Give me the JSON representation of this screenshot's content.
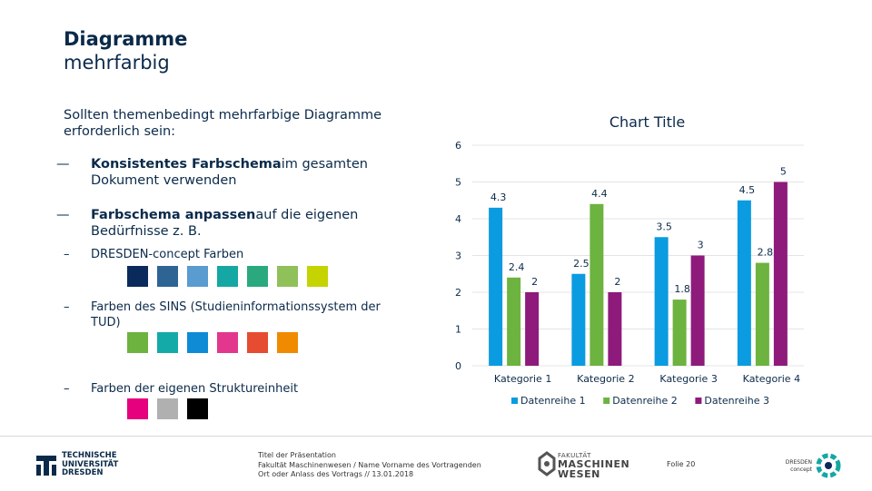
{
  "slide": {
    "title_bold": "Diagramme",
    "title_normal": "mehrfarbig",
    "intro": "Sollten themenbedingt mehrfarbige Diagramme erforderlich sein:",
    "bullets": [
      {
        "dash": "—",
        "bold": "Konsistentes Farbschema",
        "rest": "im gesamten Dokument verwenden"
      },
      {
        "dash": "—",
        "bold": "Farbschema anpassen",
        "rest": "auf die eigenen Bedürfnisse z. B."
      }
    ],
    "subs": [
      {
        "dash": "–",
        "text": "DRESDEN-concept Farben"
      },
      {
        "dash": "–",
        "text": "Farben des SINS (Studieninformationssystem der TUD)"
      },
      {
        "dash": "–",
        "text": "Farben der eigenen Struktureinheit"
      }
    ],
    "swatch_rows": [
      [
        "#0b2a5c",
        "#2e6494",
        "#5a9bd0",
        "#14a7a3",
        "#2aa97e",
        "#8fc05a",
        "#c5d300"
      ],
      [
        "#6db33f",
        "#14aaa8",
        "#0f8bd6",
        "#e2378d",
        "#e64c31",
        "#f08a00"
      ],
      [
        "#e6007e",
        "#b0b0b0",
        "#000000"
      ]
    ]
  },
  "chart_data": {
    "type": "bar",
    "title": "Chart Title",
    "categories": [
      "Kategorie 1",
      "Kategorie 2",
      "Kategorie 3",
      "Kategorie 4"
    ],
    "series": [
      {
        "name": "Datenreihe 1",
        "values": [
          4.3,
          2.5,
          3.5,
          4.5
        ],
        "color": "#0b9be0"
      },
      {
        "name": "Datenreihe 2",
        "values": [
          2.4,
          4.4,
          1.8,
          2.8
        ],
        "color": "#6db33f"
      },
      {
        "name": "Datenreihe 3",
        "values": [
          2,
          2,
          3,
          5
        ],
        "color": "#8e1a7c"
      }
    ],
    "ylim": [
      0,
      6
    ],
    "yticks": [
      0,
      1,
      2,
      3,
      4,
      5,
      6
    ],
    "legend_position": "bottom"
  },
  "footer": {
    "tud_lines": [
      "TECHNISCHE",
      "UNIVERSITÄT",
      "DRESDEN"
    ],
    "info_lines": [
      "Titel der Präsentation",
      "Fakultät Maschinenwesen / Name Vorname des Vortragenden",
      "Ort oder Anlass des Vortrags // 13.01.2018"
    ],
    "faculty_small": "FAKULTÄT",
    "faculty_line1": "MASCHINEN",
    "faculty_line2": "WESEN",
    "slide_number": "Folie 20",
    "concept_line1": "DRESDEN",
    "concept_line2": "concept"
  }
}
